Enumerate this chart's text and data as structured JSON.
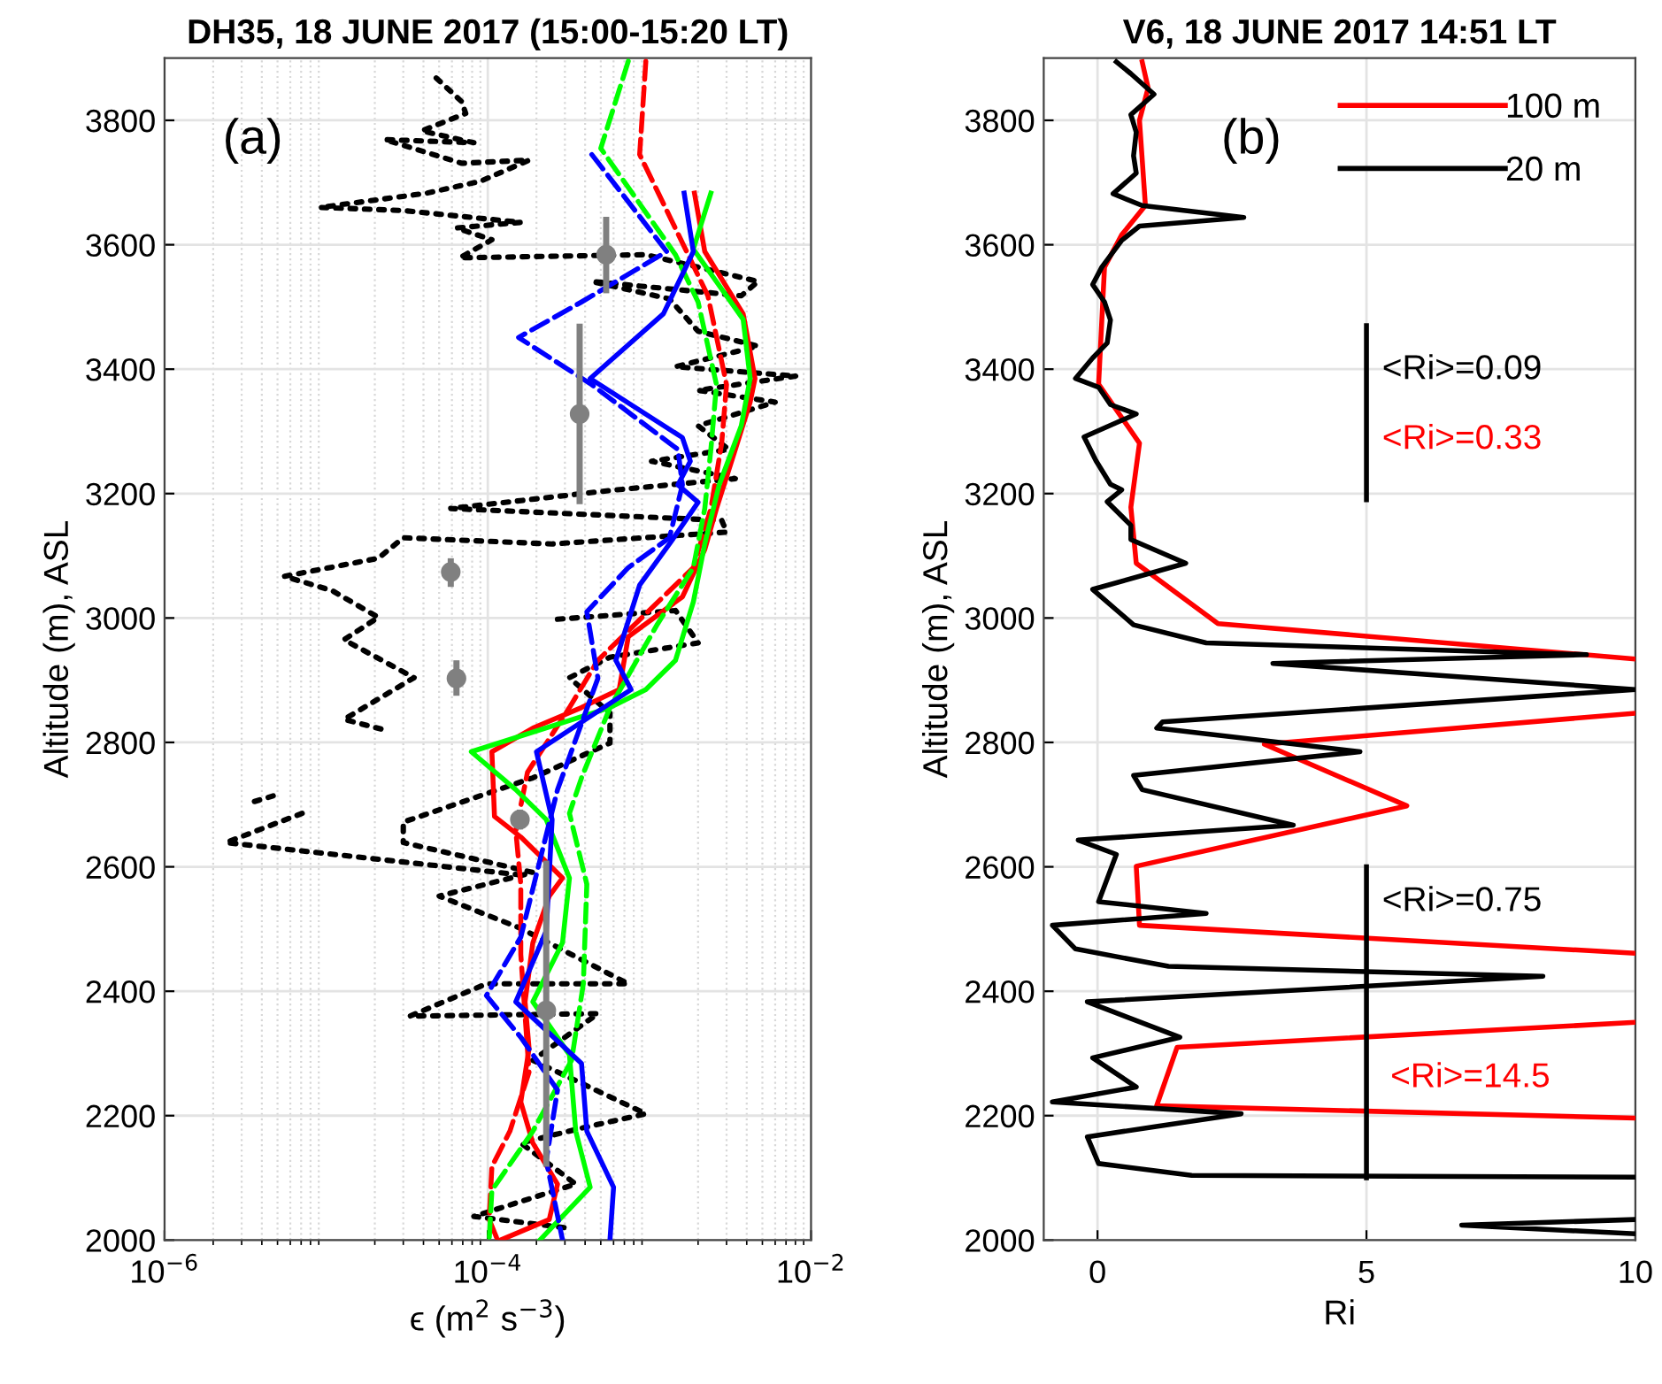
{
  "chart_data": [
    {
      "type": "line",
      "title": "DH35, 18 JUNE 2017 (15:00-15:20 LT)",
      "xlabel": "ϵ (m$^{2}$ s$^{−3}$)",
      "ylabel": "Altitude (m), ASL",
      "log": "x",
      "xlim": [
        1e-06,
        0.01
      ],
      "ylim": [
        2000,
        3900
      ],
      "xticks": [
        {
          "value": 1e-06,
          "label": "10$^{−6}$"
        },
        {
          "value": 0.0001,
          "label": "10$^{−4}$"
        },
        {
          "value": 0.01,
          "label": "10$^{−2}$"
        }
      ],
      "yticks": [
        2000,
        2200,
        2400,
        2600,
        2800,
        3000,
        3200,
        3400,
        3600,
        3800
      ],
      "grid": true,
      "annotations": [
        "(a)"
      ],
      "series": [
        {
          "type": "line",
          "color": "#000000",
          "line_style": "dotted",
          "x": [
            4.8e-05,
            6.9e-05,
            7.3e-05,
            3.9e-05,
            8.2e-05,
            2.3e-05,
            6.9e-05,
            0.00018,
            9e-05,
            4.2e-05,
            9.2e-06,
            3e-05,
            0.00016,
            6.4e-05,
            0.000106,
            6.7e-05,
            0.00095,
            0.0047,
            0.0037,
            0.00044,
            0.00133,
            0.002,
            0.0047,
            0.00145,
            0.0081,
            0.002,
            0.006,
            0.002,
            0.0031,
            0.00103,
            0.0034,
            0.00057,
            5.9e-05,
            0.0028,
            0.003,
            0.00025,
            3e-05,
            2.1e-05,
            5.5e-06,
            1.09e-05,
            2.1e-05,
            1.29e-05,
            3.5e-05,
            1.29e-05,
            2.3e-05,
            null,
            0.00027,
            0.00145,
            0.002,
            0.00057,
            0.00032,
            0.00057,
            0.00057,
            0.00019,
            3e-05,
            3e-05,
            0.00019,
            5e-05,
            0.00016,
            0.00074,
            9.8e-05,
            3.3e-05,
            0.00048,
            0.00019,
            0.00095,
            0.00038,
            0.00016,
            0.00035,
            8.2e-05,
            0.00032,
            null,
            3.6e-06,
            4.7e-06,
            null,
            7.1e-06,
            2.4e-06,
            0.00016
          ],
          "values": [
            3868,
            3830,
            3811,
            3783,
            3764,
            3769,
            3731,
            3736,
            3702,
            3683,
            3660,
            3655,
            3636,
            3627,
            3608,
            3579,
            3584,
            3541,
            3518,
            3541,
            3513,
            3461,
            3437,
            3404,
            3389,
            3366,
            3347,
            3309,
            3271,
            3252,
            3224,
            3205,
            3176,
            3157,
            3138,
            3119,
            3129,
            3096,
            3067,
            3044,
            3001,
            2965,
            2904,
            2837,
            2820,
            null,
            2998,
            3012,
            2960,
            2937,
            2904,
            2847,
            2799,
            2743,
            2672,
            2639,
            2591,
            2553,
            2501,
            2412,
            2412,
            2360,
            2364,
            2289,
            2203,
            2180,
            2156,
            2090,
            2038,
            2019,
            null,
            2705,
            2714,
            null,
            2686,
            2639,
            2587
          ]
        },
        {
          "type": "line",
          "color": "#ff0000",
          "line_style": "solid",
          "x": [
            0.0019,
            0.0022,
            0.0038,
            0.0045,
            0.0042,
            0.0034,
            0.0026,
            0.0022,
            0.0016,
            0.00074,
            0.00065,
            0.00038,
            0.00019,
            0.000106,
            0.00011,
            0.00016,
            0.00029,
            0.00024,
            0.00019,
            0.00017,
            0.00018,
            0.00016,
            0.00019,
            0.00027,
            0.00024,
            0.00012
          ],
          "values": [
            3683,
            3589,
            3489,
            3385,
            3347,
            3271,
            3176,
            3110,
            3034,
            2970,
            2885,
            2856,
            2823,
            2785,
            2681,
            2648,
            2582,
            2553,
            2478,
            2383,
            2308,
            2222,
            2156,
            2090,
            2033,
            2000
          ]
        },
        {
          "type": "line",
          "color": "#ff0000",
          "line_style": "dashed",
          "x": [
            0.00095,
            0.00087,
            0.0016,
            0.0023,
            0.003,
            0.0028,
            0.0024,
            0.00187,
            0.00048,
            0.00032,
            0.000176,
            0.000149,
            0.00016,
            0.00016,
            0.00018,
            0.000137,
            0.000106,
            0.000102,
            0.000115
          ],
          "values": [
            3895,
            3745,
            3603,
            3518,
            3375,
            3281,
            3176,
            3081,
            2932,
            2856,
            2752,
            2658,
            2572,
            2459,
            2270,
            2175,
            2118,
            2033,
            2000
          ]
        },
        {
          "type": "line",
          "color": "#00ff00",
          "line_style": "solid",
          "x": [
            0.0024,
            0.00187,
            0.0038,
            0.0042,
            0.0037,
            0.0027,
            0.0022,
            0.00187,
            0.00145,
            0.00095,
            0.00057,
            7.9e-05,
            0.000149,
            0.00023,
            0.00032,
            0.00029,
            0.00019,
            0.00032,
            0.00035,
            0.00043,
            0.00021
          ],
          "values": [
            3683,
            3593,
            3480,
            3385,
            3309,
            3214,
            3119,
            3026,
            2932,
            2885,
            2856,
            2785,
            2724,
            2676,
            2582,
            2478,
            2383,
            2298,
            2175,
            2085,
            2000
          ]
        },
        {
          "type": "line",
          "color": "#00ff00",
          "line_style": "dashed",
          "x": [
            0.00074,
            0.0005,
            0.00145,
            0.002,
            0.0026,
            0.0024,
            0.0022,
            0.00187,
            0.00112,
            0.00057,
            0.00038,
            0.00032,
            0.00041,
            0.00039,
            0.00033,
            0.00019,
            0.000106,
            0.000102
          ],
          "values": [
            3895,
            3755,
            3584,
            3508,
            3375,
            3271,
            3176,
            3081,
            2990,
            2856,
            2743,
            2686,
            2572,
            2412,
            2289,
            2175,
            2080,
            2000
          ]
        },
        {
          "type": "line",
          "color": "#0000ff",
          "line_style": "solid",
          "x": [
            0.00164,
            0.00187,
            0.00122,
            0.00043,
            0.0016,
            0.00179,
            0.0015,
            0.002,
            0.00133,
            0.00087,
            0.00062,
            0.00077,
            0.0002,
            0.00025,
            0.00023,
            0.000149,
            0.00038,
            0.00041,
            0.0006,
            0.00057
          ],
          "values": [
            3683,
            3589,
            3489,
            3385,
            3290,
            3252,
            3214,
            3186,
            3119,
            3053,
            2932,
            2885,
            2785,
            2676,
            2497,
            2383,
            2284,
            2175,
            2085,
            2000
          ]
        },
        {
          "type": "line",
          "color": "#0000ff",
          "line_style": "dashed",
          "x": [
            0.00044,
            0.00128,
            0.00038,
            0.000155,
            0.00044,
            0.0015,
            0.0016,
            0.00133,
            0.00074,
            0.00041,
            0.00048,
            0.00027,
            0.00016,
            9.8e-05,
            0.00016,
            0.00027,
            0.00023,
            0.00029
          ],
          "values": [
            3745,
            3589,
            3508,
            3451,
            3375,
            3271,
            3214,
            3129,
            3081,
            3010,
            2903,
            2724,
            2487,
            2393,
            2326,
            2241,
            2128,
            2000
          ]
        },
        {
          "type": "scatter",
          "color": "#808080",
          "marker": "circle",
          "x": [
            0.00054,
            0.00037,
            5.9e-05,
            6.4e-05,
            0.000158,
            0.00023
          ],
          "values": [
            3584,
            3328,
            3074,
            2903,
            2676,
            2369
          ],
          "errors": [
            [
              3522,
              3645
            ],
            [
              3183,
              3473
            ],
            [
              3050,
              3096
            ],
            [
              2875,
              2932
            ],
            [
              2660,
              2692
            ],
            [
              2118,
              2610
            ]
          ]
        }
      ]
    },
    {
      "type": "line",
      "title": "V6, 18 JUNE 2017 14:51 LT",
      "xlabel": "Ri",
      "ylabel": "Altitude (m), ASL",
      "xlim": [
        -1,
        10
      ],
      "ylim": [
        2000,
        3900
      ],
      "xticks": [
        0,
        5,
        10
      ],
      "yticks": [
        2000,
        2200,
        2400,
        2600,
        2800,
        3000,
        3200,
        3400,
        3600,
        3800
      ],
      "grid": true,
      "legend": "top right",
      "annotations": [
        "(b)",
        "<Ri>=0.09",
        "<Ri>=0.33",
        "<Ri>=0.75",
        "<Ri>=14.5"
      ],
      "series": [
        {
          "type": "line",
          "name": "100 m",
          "color": "#ff0000",
          "line_style": "solid",
          "x": [
            0.83,
            0.94,
            0.78,
            0.89,
            0.45,
            0.13,
            0.02,
            0.78,
            0.62,
            0.72,
            2.24,
            10,
            null,
            10,
            3.1,
            5.75,
            0.72,
            0.78,
            10,
            null,
            10,
            1.48,
            1.1,
            10
          ],
          "values": [
            3894,
            3852,
            3800,
            3663,
            3616,
            3564,
            3376,
            3281,
            3178,
            3088,
            2991,
            2934,
            null,
            2847,
            2797,
            2698,
            2601,
            2506,
            2461,
            null,
            2350,
            2310,
            2216,
            2196
          ]
        },
        {
          "type": "line",
          "name": "20 m",
          "color": "#000000",
          "line_style": "solid",
          "x": [
            0.35,
            0.62,
            1.05,
            0.62,
            0.72,
            0.67,
            0.72,
            0.29,
            0.83,
            2.72,
            0.78,
            0.45,
            0.08,
            -0.09,
            0.13,
            0.24,
            0.18,
            -0.09,
            -0.41,
            0.02,
            0.24,
            0.72,
            -0.25,
            -0.03,
            0.24,
            0.45,
            0.18,
            0.62,
            0.62,
            1.64,
            -0.09,
            0.35,
            0.67,
            2.02,
            9.09,
            3.26,
            10,
            1.21,
            1.1,
            4.88,
            0.67,
            0.83,
            3.64,
            -0.36,
            0.35,
            0.02,
            2.02,
            -0.84,
            -0.41,
            1.32,
            8.28,
            -0.19,
            1.53,
            -0.09,
            0.72,
            -0.84,
            2.67,
            -0.19,
            0.02,
            1.75,
            10,
            null,
            10,
            6.77,
            10
          ],
          "values": [
            3894,
            3875,
            3842,
            3809,
            3781,
            3743,
            3715,
            3682,
            3663,
            3644,
            3630,
            3607,
            3564,
            3536,
            3508,
            3479,
            3442,
            3418,
            3385,
            3371,
            3343,
            3328,
            3291,
            3253,
            3215,
            3206,
            3187,
            3149,
            3126,
            3088,
            3046,
            3013,
            2989,
            2960,
            2941,
            2927,
            2885,
            2833,
            2823,
            2785,
            2747,
            2724,
            2667,
            2643,
            2620,
            2544,
            2525,
            2506,
            2468,
            2440,
            2424,
            2383,
            2326,
            2293,
            2246,
            2222,
            2203,
            2166,
            2123,
            2104,
            2101,
            null,
            2033,
            2024,
            2010
          ]
        },
        {
          "color": "#000000",
          "line_style": "solid",
          "x": [
            5,
            5
          ],
          "values": [
            3470,
            3190
          ]
        },
        {
          "color": "#000000",
          "line_style": "solid",
          "x": [
            5,
            5
          ],
          "values": [
            2600,
            2100
          ]
        }
      ]
    }
  ]
}
